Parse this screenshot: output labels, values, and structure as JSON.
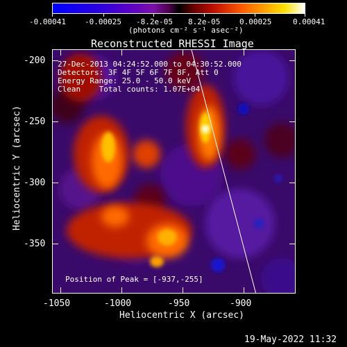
{
  "colorbar": {
    "labels": [
      "-0.00041",
      "-0.00025",
      "-8.2e-05",
      "8.2e-05",
      "0.00025",
      "0.00041"
    ],
    "units_line": "(photons cm⁻² s⁻¹ asec⁻²)"
  },
  "plot": {
    "title": "Reconstructed RHESSI Image",
    "xlabel": "Heliocentric X (arcsec)",
    "ylabel": "Heliocentric Y (arcsec)",
    "xticks": [
      "-1050",
      "-1000",
      "-950",
      "-900"
    ],
    "yticks": [
      "-200",
      "-250",
      "-300",
      "-350"
    ]
  },
  "annotations": {
    "line1": "27-Dec-2013 04:24:52.000 to 04:30:52.000",
    "line2": "Detectors: 3F 4F 5F 6F 7F 8F, Att 0",
    "line3": "Energy Range: 25.0 - 50.0 keV",
    "line4": "Clean    Total counts: 1.07E+04",
    "peak": "Position of Peak = [-937,-255]"
  },
  "footer": {
    "timestamp": "19-May-2022 11:32"
  },
  "colors": {
    "background": "#000000",
    "text": "#ffffff"
  },
  "chart_data": {
    "type": "heatmap",
    "title": "Reconstructed RHESSI Image",
    "xlabel": "Heliocentric X (arcsec)",
    "ylabel": "Heliocentric Y (arcsec)",
    "xlim": [
      -1070,
      -870
    ],
    "ylim": [
      -385,
      -195
    ],
    "colorbar_range": [
      -0.00041,
      0.00041
    ],
    "peak_position": [
      -937,
      -255
    ],
    "limb_line": [
      [
        -957,
        -195
      ],
      [
        -897,
        -385
      ]
    ]
  }
}
